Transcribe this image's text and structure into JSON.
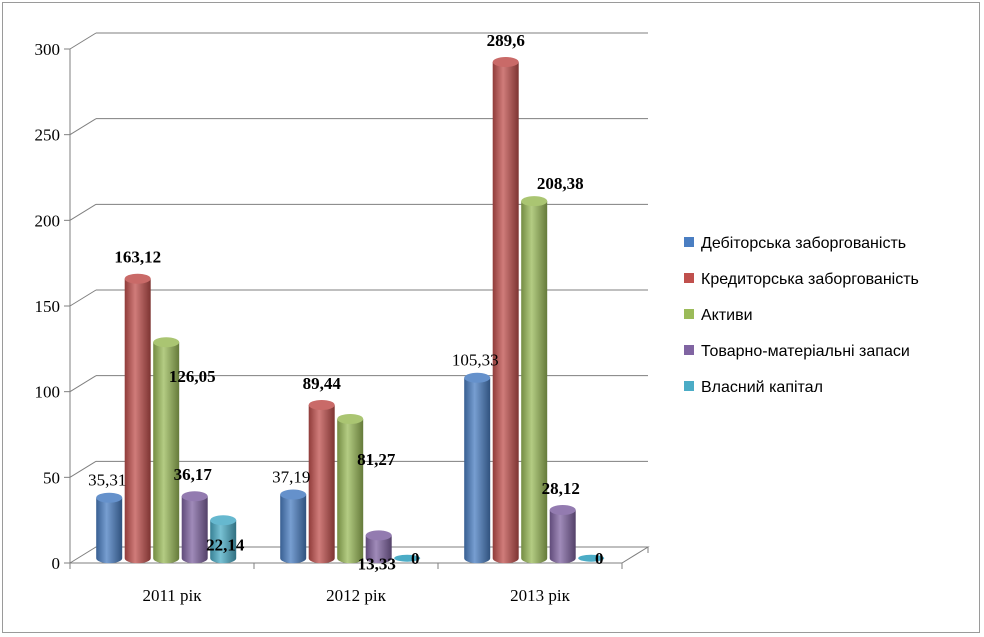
{
  "chart_data": {
    "type": "bar",
    "categories": [
      "2011 рік",
      "2012 рік",
      "2013 рік"
    ],
    "ylim": [
      0,
      300
    ],
    "yticks": [
      0,
      50,
      100,
      150,
      200,
      250,
      300
    ],
    "grid": true,
    "legend_position": "right",
    "series": [
      {
        "name": "Дебіторська заборгованість",
        "color": "#4a7ec2",
        "values": [
          35.31,
          37.19,
          105.33
        ],
        "labels": [
          "35,31",
          "37,19",
          "105,33"
        ],
        "bold": false
      },
      {
        "name": "Кредиторська заборгованість",
        "color": "#c0504d",
        "values": [
          163.12,
          89.44,
          289.6
        ],
        "labels": [
          "163,12",
          "89,44",
          "289,6"
        ],
        "bold": true
      },
      {
        "name": "Активи",
        "color": "#9bbb59",
        "values": [
          126.05,
          81.27,
          208.38
        ],
        "labels": [
          "126,05",
          "81,27",
          "208,38"
        ],
        "bold": true
      },
      {
        "name": "Товарно-матеріальні запаси",
        "color": "#8064a2",
        "values": [
          36.17,
          13.33,
          28.12
        ],
        "labels": [
          "36,17",
          "13,33",
          "28,12"
        ],
        "bold": true
      },
      {
        "name": "Власний капітал",
        "color": "#4bacc6",
        "values": [
          22.14,
          0,
          0
        ],
        "labels": [
          "22,14",
          "0",
          "0"
        ],
        "bold": true
      }
    ]
  }
}
